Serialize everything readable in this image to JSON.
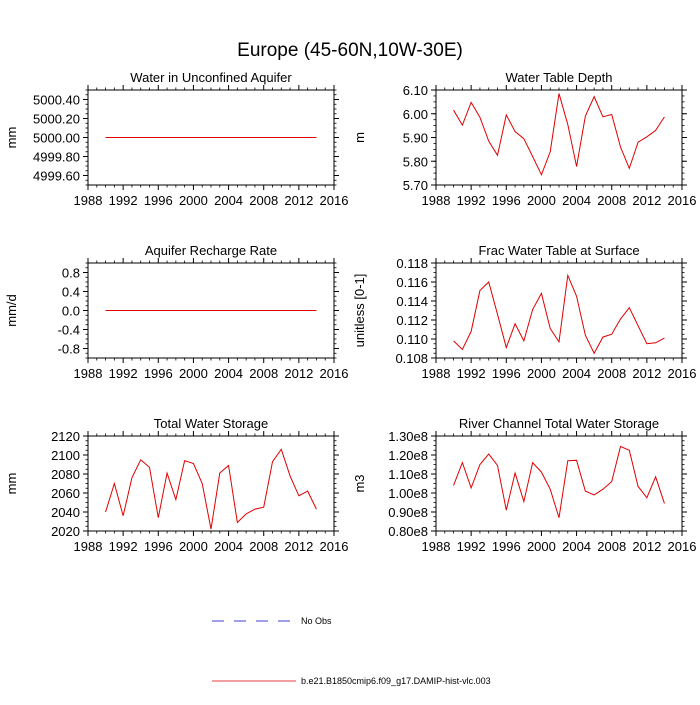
{
  "figure": {
    "title": "Europe (45-60N,10W-30E)"
  },
  "legend": {
    "entries": [
      {
        "label": "No Obs",
        "color": "#0000cc",
        "style": "dashed"
      },
      {
        "label": "b.e21.B1850cmip6.f09_g17.DAMIP-hist-vlc.003",
        "color": "#e00000",
        "style": "solid"
      }
    ]
  },
  "chart_data": [
    {
      "type": "line",
      "title": "Water in Unconfined Aquifer",
      "xlabel": "",
      "ylabel": "mm",
      "xlim": [
        1988,
        2016
      ],
      "ylim": [
        4999.5,
        5000.5
      ],
      "xticks": [
        1988,
        1992,
        1996,
        2000,
        2004,
        2008,
        2012,
        2016
      ],
      "xtick_labels": [
        "1988",
        "1992",
        "1996",
        "2000",
        "2004",
        "2008",
        "2012",
        "2016"
      ],
      "yticks": [
        4999.6,
        4999.8,
        5000.0,
        5000.2,
        5000.4
      ],
      "ytick_labels": [
        "4999.60",
        "4999.80",
        "5000.00",
        "5000.20",
        "5000.40"
      ],
      "series": [
        {
          "color": "#e00000",
          "x": [
            1990,
            1991,
            1992,
            1993,
            1994,
            1995,
            1996,
            1997,
            1998,
            1999,
            2000,
            2001,
            2002,
            2003,
            2004,
            2005,
            2006,
            2007,
            2008,
            2009,
            2010,
            2011,
            2012,
            2013,
            2014
          ],
          "y": [
            5000,
            5000,
            5000,
            5000,
            5000,
            5000,
            5000,
            5000,
            5000,
            5000,
            5000,
            5000,
            5000,
            5000,
            5000,
            5000,
            5000,
            5000,
            5000,
            5000,
            5000,
            5000,
            5000,
            5000,
            5000
          ]
        }
      ]
    },
    {
      "type": "line",
      "title": "Water Table Depth",
      "xlabel": "",
      "ylabel": "m",
      "xlim": [
        1988,
        2016
      ],
      "ylim": [
        5.7,
        6.1
      ],
      "xticks": [
        1988,
        1992,
        1996,
        2000,
        2004,
        2008,
        2012,
        2016
      ],
      "xtick_labels": [
        "1988",
        "1992",
        "1996",
        "2000",
        "2004",
        "2008",
        "2012",
        "2016"
      ],
      "yticks": [
        5.7,
        5.8,
        5.9,
        6.0,
        6.1
      ],
      "ytick_labels": [
        "5.70",
        "5.80",
        "5.90",
        "6.00",
        "6.10"
      ],
      "series": [
        {
          "color": "#e00000",
          "x": [
            1990,
            1991,
            1992,
            1993,
            1994,
            1995,
            1996,
            1997,
            1998,
            1999,
            2000,
            2001,
            2002,
            2003,
            2004,
            2005,
            2006,
            2007,
            2008,
            2009,
            2010,
            2011,
            2012,
            2013,
            2014
          ],
          "y": [
            6.015,
            5.952,
            6.048,
            5.985,
            5.885,
            5.825,
            5.995,
            5.925,
            5.895,
            5.82,
            5.743,
            5.84,
            6.085,
            5.955,
            5.778,
            5.99,
            6.072,
            5.987,
            5.997,
            5.86,
            5.77,
            5.88,
            5.903,
            5.93,
            5.987
          ]
        }
      ]
    },
    {
      "type": "line",
      "title": "Aquifer Recharge Rate",
      "xlabel": "",
      "ylabel": "mm/d",
      "xlim": [
        1988,
        2016
      ],
      "ylim": [
        -1.0,
        1.0
      ],
      "xticks": [
        1988,
        1992,
        1996,
        2000,
        2004,
        2008,
        2012,
        2016
      ],
      "xtick_labels": [
        "1988",
        "1992",
        "1996",
        "2000",
        "2004",
        "2008",
        "2012",
        "2016"
      ],
      "yticks": [
        -0.8,
        -0.4,
        0.0,
        0.4,
        0.8
      ],
      "ytick_labels": [
        "-0.8",
        "-0.4",
        "0.0",
        "0.4",
        "0.8"
      ],
      "series": [
        {
          "color": "#e00000",
          "x": [
            1990,
            1991,
            1992,
            1993,
            1994,
            1995,
            1996,
            1997,
            1998,
            1999,
            2000,
            2001,
            2002,
            2003,
            2004,
            2005,
            2006,
            2007,
            2008,
            2009,
            2010,
            2011,
            2012,
            2013,
            2014
          ],
          "y": [
            0,
            0,
            0,
            0,
            0,
            0,
            0,
            0,
            0,
            0,
            0,
            0,
            0,
            0,
            0,
            0,
            0,
            0,
            0,
            0,
            0,
            0,
            0,
            0,
            0
          ]
        }
      ]
    },
    {
      "type": "line",
      "title": "Frac Water Table at Surface",
      "xlabel": "",
      "ylabel": "unitless [0-1]",
      "xlim": [
        1988,
        2016
      ],
      "ylim": [
        0.108,
        0.118
      ],
      "xticks": [
        1988,
        1992,
        1996,
        2000,
        2004,
        2008,
        2012,
        2016
      ],
      "xtick_labels": [
        "1988",
        "1992",
        "1996",
        "2000",
        "2004",
        "2008",
        "2012",
        "2016"
      ],
      "yticks": [
        0.108,
        0.11,
        0.112,
        0.114,
        0.116,
        0.118
      ],
      "ytick_labels": [
        "0.108",
        "0.110",
        "0.112",
        "0.114",
        "0.116",
        "0.118"
      ],
      "series": [
        {
          "color": "#e00000",
          "x": [
            1990,
            1991,
            1992,
            1993,
            1994,
            1995,
            1996,
            1997,
            1998,
            1999,
            2000,
            2001,
            2002,
            2003,
            2004,
            2005,
            2006,
            2007,
            2008,
            2009,
            2010,
            2011,
            2012,
            2013,
            2014
          ],
          "y": [
            0.1098,
            0.1089,
            0.1108,
            0.1151,
            0.116,
            0.1126,
            0.1091,
            0.1116,
            0.1098,
            0.1131,
            0.1148,
            0.1111,
            0.1097,
            0.1167,
            0.1145,
            0.1104,
            0.1085,
            0.1102,
            0.1105,
            0.1121,
            0.1133,
            0.1114,
            0.1095,
            0.1096,
            0.1101
          ]
        }
      ]
    },
    {
      "type": "line",
      "title": "Total Water Storage",
      "xlabel": "",
      "ylabel": "mm",
      "xlim": [
        1988,
        2016
      ],
      "ylim": [
        2020,
        2120
      ],
      "xticks": [
        1988,
        1992,
        1996,
        2000,
        2004,
        2008,
        2012,
        2016
      ],
      "xtick_labels": [
        "1988",
        "1992",
        "1996",
        "2000",
        "2004",
        "2008",
        "2012",
        "2016"
      ],
      "yticks": [
        2020,
        2040,
        2060,
        2080,
        2100,
        2120
      ],
      "ytick_labels": [
        "2020",
        "2040",
        "2060",
        "2080",
        "2100",
        "2120"
      ],
      "series": [
        {
          "color": "#e00000",
          "x": [
            1990,
            1991,
            1992,
            1993,
            1994,
            1995,
            1996,
            1997,
            1998,
            1999,
            2000,
            2001,
            2002,
            2003,
            2004,
            2005,
            2006,
            2007,
            2008,
            2009,
            2010,
            2011,
            2012,
            2013,
            2014
          ],
          "y": [
            2040,
            2070,
            2036,
            2076,
            2095,
            2087,
            2034,
            2081,
            2053,
            2094,
            2091,
            2070,
            2022,
            2081,
            2089,
            2029,
            2038,
            2043,
            2045,
            2093,
            2106,
            2078,
            2057,
            2062,
            2043
          ]
        }
      ]
    },
    {
      "type": "line",
      "title": "River Channel Total Water Storage",
      "xlabel": "",
      "ylabel": "m3",
      "xlim": [
        1988,
        2016
      ],
      "ylim": [
        80000000,
        130000000
      ],
      "xticks": [
        1988,
        1992,
        1996,
        2000,
        2004,
        2008,
        2012,
        2016
      ],
      "xtick_labels": [
        "1988",
        "1992",
        "1996",
        "2000",
        "2004",
        "2008",
        "2012",
        "2016"
      ],
      "yticks": [
        80000000,
        90000000,
        100000000,
        110000000,
        120000000,
        130000000
      ],
      "ytick_labels": [
        "0.80e8",
        "0.90e8",
        "1.00e8",
        "1.10e8",
        "1.20e8",
        "1.30e8"
      ],
      "series": [
        {
          "color": "#e00000",
          "x": [
            1990,
            1991,
            1992,
            1993,
            1994,
            1995,
            1996,
            1997,
            1998,
            1999,
            2000,
            2001,
            2002,
            2003,
            2004,
            2005,
            2006,
            2007,
            2008,
            2009,
            2010,
            2011,
            2012,
            2013,
            2014
          ],
          "y": [
            104000000,
            116000000,
            102700000,
            115000000,
            120500000,
            114500000,
            91000000,
            110500000,
            95500000,
            116000000,
            111000000,
            102000000,
            87000000,
            117000000,
            117200000,
            101000000,
            99000000,
            102000000,
            106000000,
            124500000,
            122500000,
            103500000,
            97500000,
            108500000,
            94500000
          ]
        }
      ]
    }
  ]
}
